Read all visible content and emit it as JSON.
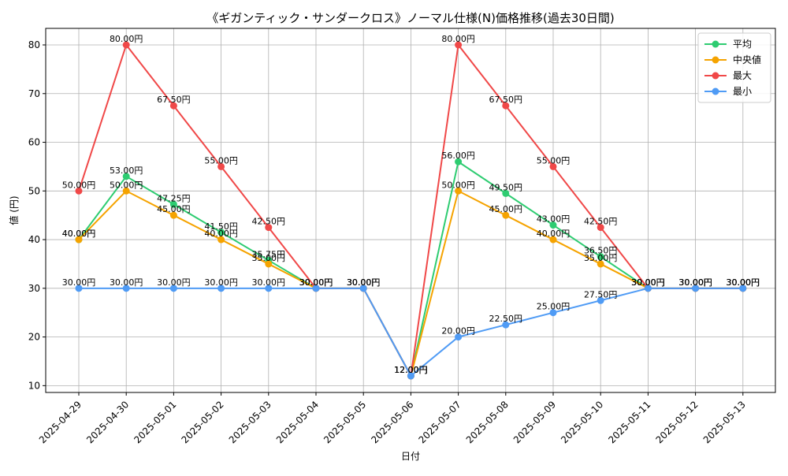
{
  "chart_data": {
    "type": "line",
    "title": "《ギガンティック・サンダークロス》ノーマル仕様(N)価格推移(過去30日間)",
    "xlabel": "日付",
    "ylabel": "値 (円)",
    "x": [
      "2025-04-29",
      "2025-04-30",
      "2025-05-01",
      "2025-05-02",
      "2025-05-03",
      "2025-05-04",
      "2025-05-05",
      "2025-05-06",
      "2025-05-07",
      "2025-05-08",
      "2025-05-09",
      "2025-05-10",
      "2025-05-11",
      "2025-05-12",
      "2025-05-13"
    ],
    "yticks": [
      10,
      20,
      30,
      40,
      50,
      60,
      70,
      80
    ],
    "ylim": [
      8.6,
      83.4
    ],
    "grid": true,
    "legend_position": "top-right",
    "label_suffix": "円",
    "series": [
      {
        "name": "平均",
        "color": "#2ecc71",
        "values": [
          40,
          53,
          47.25,
          41.5,
          35.75,
          30,
          30,
          12,
          56,
          49.5,
          43,
          36.5,
          30,
          30,
          30
        ]
      },
      {
        "name": "中央値",
        "color": "#f5a300",
        "values": [
          40,
          50,
          45,
          40,
          35,
          30,
          30,
          12,
          50,
          45,
          40,
          35,
          30,
          30,
          30
        ]
      },
      {
        "name": "最大",
        "color": "#f04848",
        "values": [
          50,
          80,
          67.5,
          55,
          42.5,
          30,
          30,
          12,
          80,
          67.5,
          55,
          42.5,
          30,
          30,
          30
        ]
      },
      {
        "name": "最小",
        "color": "#4f9bf5",
        "values": [
          30,
          30,
          30,
          30,
          30,
          30,
          30,
          12,
          20,
          22.5,
          25,
          27.5,
          30,
          30,
          30
        ]
      }
    ]
  }
}
